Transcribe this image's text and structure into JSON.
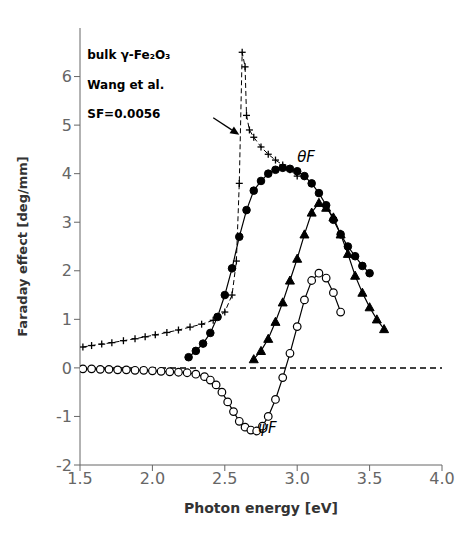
{
  "chart_data": {
    "type": "line",
    "xlabel": "Photon energy [eV]",
    "ylabel": "Faraday effect [deg/mm]",
    "xlim": [
      1.5,
      4.0
    ],
    "ylim": [
      -2,
      7
    ],
    "xticks": [
      1.5,
      {
        "value": 2,
        "label": "2.0"
      },
      2.5,
      {
        "value": 3,
        "label": "3.0"
      },
      3.5,
      {
        "value": 4,
        "label": "4.0"
      }
    ],
    "yticks": [
      -2,
      -1,
      0,
      1,
      2,
      3,
      4,
      5,
      6
    ],
    "grid": false,
    "hlines": [
      0
    ],
    "series": [
      {
        "x": [
          1.52,
          1.58,
          1.65,
          1.72,
          1.8,
          1.88,
          1.95,
          2.02,
          2.1,
          2.18,
          2.26,
          2.34,
          2.42,
          2.5,
          2.55,
          2.58,
          2.6,
          2.62,
          2.64,
          2.65,
          2.67,
          2.7,
          2.75,
          2.8,
          2.85,
          2.9,
          2.95,
          3.0
        ],
        "values": [
          0.43,
          0.46,
          0.49,
          0.52,
          0.56,
          0.6,
          0.64,
          0.68,
          0.73,
          0.78,
          0.84,
          0.9,
          0.98,
          1.15,
          1.5,
          2.2,
          3.8,
          6.5,
          6.2,
          5.2,
          4.9,
          4.75,
          4.55,
          4.4,
          4.28,
          4.18,
          4.08,
          3.95
        ],
        "color": "#000000",
        "marker": "plus",
        "line_style": "dashed"
      },
      {
        "x": [
          2.25,
          2.3,
          2.35,
          2.4,
          2.45,
          2.5,
          2.55,
          2.6,
          2.65,
          2.7,
          2.75,
          2.8,
          2.85,
          2.9,
          2.95,
          3.0,
          3.05,
          3.1,
          3.15,
          3.2,
          3.25,
          3.3,
          3.35,
          3.4,
          3.45,
          3.5
        ],
        "values": [
          0.22,
          0.35,
          0.5,
          0.72,
          1.05,
          1.5,
          2.05,
          2.7,
          3.25,
          3.65,
          3.85,
          4.0,
          4.08,
          4.12,
          4.1,
          4.05,
          3.95,
          3.8,
          3.6,
          3.35,
          3.05,
          2.75,
          2.5,
          2.3,
          2.1,
          1.95
        ],
        "color": "#000000",
        "marker": "circle",
        "line_style": "solid"
      },
      {
        "x": [
          1.52,
          1.58,
          1.64,
          1.7,
          1.76,
          1.82,
          1.88,
          1.94,
          2.0,
          2.06,
          2.12,
          2.18,
          2.24,
          2.3,
          2.36,
          2.4,
          2.44,
          2.48,
          2.52,
          2.56,
          2.6,
          2.64,
          2.68,
          2.72,
          2.76,
          2.8,
          2.85,
          2.9,
          2.95,
          3.0,
          3.05,
          3.1,
          3.15,
          3.2,
          3.25,
          3.3
        ],
        "values": [
          -0.02,
          -0.02,
          -0.03,
          -0.03,
          -0.04,
          -0.04,
          -0.05,
          -0.05,
          -0.06,
          -0.07,
          -0.08,
          -0.09,
          -0.1,
          -0.13,
          -0.18,
          -0.25,
          -0.35,
          -0.5,
          -0.7,
          -0.9,
          -1.1,
          -1.22,
          -1.28,
          -1.3,
          -1.2,
          -1.0,
          -0.65,
          -0.2,
          0.3,
          0.85,
          1.4,
          1.8,
          1.95,
          1.85,
          1.55,
          1.15
        ],
        "color": "#000000",
        "marker": "open_circle",
        "line_style": "solid"
      },
      {
        "x": [
          2.7,
          2.75,
          2.8,
          2.85,
          2.9,
          2.95,
          3.0,
          3.05,
          3.1,
          3.15,
          3.2,
          3.25,
          3.3,
          3.35,
          3.4,
          3.45,
          3.5,
          3.55,
          3.6
        ],
        "values": [
          0.18,
          0.35,
          0.6,
          0.95,
          1.35,
          1.8,
          2.25,
          2.75,
          3.2,
          3.4,
          3.3,
          3.1,
          2.75,
          2.35,
          1.9,
          1.55,
          1.25,
          1.0,
          0.8
        ],
        "color": "#000000",
        "marker": "triangle",
        "line_style": "solid"
      }
    ],
    "curve_labels": [
      {
        "text": "θF",
        "x": 3.0,
        "y": 4.25
      },
      {
        "text": "ψF",
        "x": 2.73,
        "y": -1.35
      }
    ],
    "text_labels": [
      {
        "text": "bulk γ-Fe₂O₃",
        "x": 1.55,
        "y": 6.55
      },
      {
        "text": "Wang et al.",
        "x": 1.55,
        "y": 5.95
      },
      {
        "text": "SF=0.0056",
        "x": 1.55,
        "y": 5.35
      }
    ],
    "arrow": {
      "from": [
        2.42,
        5.15
      ],
      "to": [
        2.6,
        4.8
      ]
    }
  }
}
